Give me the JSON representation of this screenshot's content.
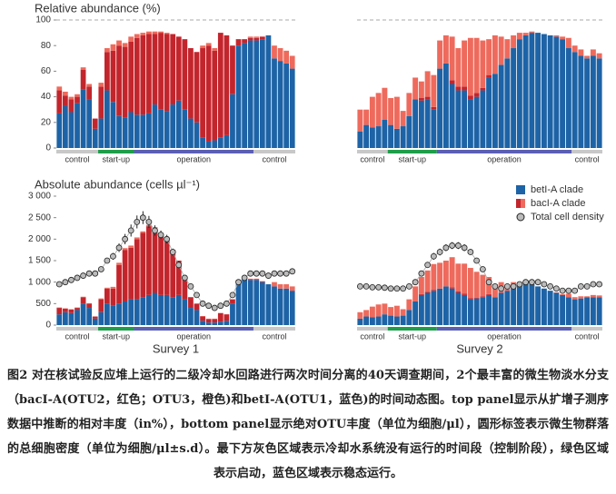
{
  "chart_data": [
    {
      "type": "bar",
      "title": "Relative abundance (%)",
      "ylim": [
        0,
        100
      ],
      "yticks": [
        0,
        20,
        40,
        60,
        80,
        100
      ],
      "reference_line": 100,
      "phases": [
        {
          "label": "control",
          "span": 7,
          "color": "#c8c8c8"
        },
        {
          "label": "start-up",
          "span": 6,
          "color": "#1f9e4a"
        },
        {
          "label": "operation",
          "span": 20,
          "color": "#5b5fb4"
        },
        {
          "label": "control",
          "span": 7,
          "color": "#c8c8c8"
        }
      ],
      "series": [
        {
          "name": "betI-A clade",
          "color": "#1d63a6",
          "values": [
            27,
            33,
            28,
            35,
            46,
            38,
            15,
            23,
            45,
            36,
            25,
            24,
            28,
            26,
            26,
            27,
            34,
            30,
            29,
            34,
            37,
            30,
            23,
            20,
            8,
            5,
            6,
            8,
            10,
            42,
            80,
            82,
            84,
            84,
            85,
            88,
            70,
            68,
            66,
            62
          ]
        },
        {
          "name": "bacI-A clade",
          "color": "#c3252c",
          "values": [
            18,
            8,
            10,
            5,
            15,
            10,
            8,
            25,
            30,
            40,
            55,
            55,
            55,
            60,
            62,
            62,
            55,
            60,
            60,
            55,
            50,
            55,
            55,
            55,
            70,
            75,
            70,
            82,
            78,
            38,
            5,
            3,
            2,
            2,
            2,
            0,
            0,
            0,
            0,
            0
          ]
        },
        {
          "color": "#ee6a5c",
          "values": [
            3,
            3,
            2,
            2,
            2,
            2,
            0,
            3,
            3,
            5,
            4,
            3,
            4,
            3,
            2,
            2,
            2,
            1,
            1,
            0,
            0,
            0,
            0,
            0,
            2,
            2,
            2,
            0,
            0,
            0,
            0,
            0,
            1,
            1,
            0,
            0,
            10,
            10,
            10,
            10
          ]
        }
      ]
    },
    {
      "type": "bar",
      "ylim": [
        0,
        100
      ],
      "reference_line": 100,
      "phases": [
        {
          "label": "control",
          "span": 5,
          "color": "#c8c8c8"
        },
        {
          "label": "start-up",
          "span": 8,
          "color": "#1f9e4a"
        },
        {
          "label": "operation",
          "span": 22,
          "color": "#5b5fb4"
        },
        {
          "label": "control",
          "span": 5,
          "color": "#c8c8c8"
        }
      ],
      "series": [
        {
          "name": "betI-A clade",
          "color": "#1d63a6",
          "values": [
            13,
            18,
            16,
            17,
            22,
            18,
            15,
            17,
            25,
            38,
            37,
            38,
            30,
            62,
            66,
            50,
            45,
            45,
            38,
            40,
            45,
            55,
            58,
            65,
            70,
            78,
            85,
            88,
            90,
            90,
            89,
            88,
            87,
            85,
            78,
            75,
            72,
            70,
            72,
            70
          ]
        },
        {
          "name": "bacI-A clade",
          "color": "#c3252c",
          "values": [
            0,
            0,
            0,
            0,
            0,
            0,
            0,
            0,
            0,
            0,
            2,
            2,
            2,
            0,
            0,
            3,
            3,
            3,
            3,
            3,
            2,
            2,
            0,
            0,
            0,
            0,
            0,
            0,
            0,
            0,
            0,
            0,
            0,
            0,
            0,
            0,
            0,
            0,
            0,
            0
          ]
        },
        {
          "color": "#ee6a5c",
          "values": [
            17,
            12,
            24,
            26,
            25,
            21,
            25,
            12,
            18,
            17,
            13,
            20,
            25,
            22,
            22,
            34,
            30,
            36,
            45,
            43,
            37,
            28,
            30,
            22,
            15,
            10,
            5,
            2,
            1,
            0,
            0,
            0,
            1,
            2,
            8,
            5,
            5,
            2,
            5,
            4
          ]
        }
      ]
    },
    {
      "type": "bar",
      "title": "Absolute abundance (cells µl⁻¹)",
      "xlabel": "Survey 1",
      "ylim": [
        0,
        3000
      ],
      "yticks": [
        0,
        500,
        {
          "value": 1000,
          "label": "1 000"
        },
        {
          "value": 1500,
          "label": "1 500"
        },
        {
          "value": 2000,
          "label": "2 000"
        },
        {
          "value": 2500,
          "label": "2 500"
        },
        {
          "value": 3000,
          "label": "3 000"
        }
      ],
      "phases": [
        {
          "label": "control",
          "span": 7,
          "color": "#c8c8c8"
        },
        {
          "label": "start-up",
          "span": 6,
          "color": "#1f9e4a"
        },
        {
          "label": "operation",
          "span": 20,
          "color": "#5b5fb4"
        },
        {
          "label": "control",
          "span": 7,
          "color": "#c8c8c8"
        }
      ],
      "series": [
        {
          "name": "betI-A clade",
          "color": "#1d63a6",
          "values": [
            250,
            300,
            280,
            350,
            500,
            400,
            150,
            300,
            500,
            450,
            500,
            550,
            600,
            600,
            650,
            700,
            750,
            700,
            700,
            650,
            700,
            600,
            400,
            350,
            100,
            60,
            60,
            80,
            100,
            500,
            1000,
            1100,
            1050,
            1050,
            1000,
            950,
            900,
            850,
            850,
            800
          ]
        },
        {
          "name": "bacI-A clade",
          "color": "#c3252c",
          "values": [
            150,
            80,
            80,
            50,
            150,
            100,
            50,
            300,
            350,
            400,
            900,
            1200,
            1200,
            1400,
            1500,
            1600,
            1500,
            1400,
            1300,
            1100,
            800,
            500,
            250,
            150,
            100,
            80,
            80,
            200,
            150,
            100,
            50,
            30,
            20,
            20,
            20,
            0,
            0,
            0,
            0,
            0
          ]
        },
        {
          "color": "#ee6a5c",
          "values": [
            10,
            10,
            10,
            10,
            10,
            10,
            0,
            20,
            20,
            40,
            50,
            40,
            50,
            40,
            30,
            30,
            30,
            20,
            20,
            0,
            0,
            0,
            0,
            0,
            10,
            10,
            10,
            0,
            0,
            0,
            0,
            0,
            10,
            10,
            0,
            0,
            100,
            100,
            100,
            100
          ]
        }
      ],
      "density": {
        "name": "Total cell density",
        "values": [
          950,
          1000,
          1050,
          1100,
          1150,
          1200,
          1200,
          1300,
          1500,
          1600,
          1800,
          2000,
          2200,
          2400,
          2500,
          2400,
          2200,
          2100,
          2000,
          1700,
          1400,
          1100,
          900,
          700,
          500,
          450,
          400,
          450,
          500,
          700,
          1000,
          1100,
          1200,
          1200,
          1200,
          1150,
          1200,
          1200,
          1200,
          1250
        ],
        "errors": [
          40,
          40,
          40,
          40,
          40,
          40,
          40,
          50,
          60,
          80,
          100,
          120,
          140,
          150,
          150,
          140,
          120,
          100,
          100,
          80,
          80,
          60,
          50,
          50,
          40,
          40,
          40,
          40,
          40,
          50,
          60,
          60,
          60,
          60,
          50,
          50,
          50,
          50,
          50,
          50
        ]
      }
    },
    {
      "type": "bar",
      "xlabel": "Survey 2",
      "ylim": [
        0,
        3000
      ],
      "phases": [
        {
          "label": "control",
          "span": 5,
          "color": "#c8c8c8"
        },
        {
          "label": "start-up",
          "span": 8,
          "color": "#1f9e4a"
        },
        {
          "label": "operation",
          "span": 22,
          "color": "#5b5fb4"
        },
        {
          "label": "control",
          "span": 5,
          "color": "#c8c8c8"
        }
      ],
      "series": [
        {
          "name": "betI-A clade",
          "color": "#1d63a6",
          "values": [
            150,
            200,
            180,
            200,
            250,
            220,
            200,
            220,
            350,
            550,
            700,
            750,
            800,
            850,
            900,
            850,
            750,
            700,
            600,
            620,
            650,
            700,
            650,
            750,
            800,
            900,
            950,
            1000,
            950,
            900,
            850,
            800,
            750,
            700,
            650,
            600,
            620,
            650,
            650,
            650
          ]
        },
        {
          "name": "bacI-A clade",
          "color": "#c3252c",
          "values": [
            0,
            0,
            0,
            0,
            0,
            0,
            0,
            0,
            0,
            0,
            20,
            20,
            20,
            0,
            0,
            30,
            30,
            30,
            30,
            20,
            20,
            20,
            0,
            0,
            0,
            0,
            0,
            0,
            0,
            0,
            0,
            0,
            0,
            0,
            0,
            0,
            0,
            0,
            0,
            0
          ]
        },
        {
          "color": "#ee6a5c",
          "values": [
            150,
            150,
            250,
            280,
            250,
            200,
            250,
            150,
            250,
            350,
            400,
            500,
            600,
            600,
            600,
            700,
            650,
            700,
            700,
            600,
            500,
            400,
            300,
            250,
            150,
            100,
            50,
            20,
            10,
            0,
            0,
            0,
            10,
            20,
            80,
            50,
            50,
            20,
            50,
            40
          ]
        }
      ],
      "density": {
        "name": "Total cell density",
        "values": [
          900,
          900,
          880,
          880,
          870,
          850,
          850,
          850,
          900,
          1000,
          1200,
          1400,
          1600,
          1700,
          1800,
          1850,
          1850,
          1800,
          1700,
          1500,
          1300,
          1000,
          900,
          850,
          900,
          900,
          950,
          1000,
          1000,
          1000,
          950,
          900,
          850,
          800,
          800,
          800,
          900,
          900,
          950,
          950
        ],
        "errors": [
          40,
          40,
          40,
          40,
          40,
          40,
          40,
          40,
          40,
          50,
          60,
          70,
          80,
          80,
          80,
          80,
          80,
          80,
          70,
          60,
          60,
          50,
          40,
          40,
          40,
          40,
          40,
          50,
          50,
          50,
          40,
          40,
          40,
          40,
          40,
          40,
          40,
          40,
          40,
          40
        ]
      }
    }
  ],
  "caption": "图2 对在核试验反应堆上运行的二级冷却水回路进行两次时间分离的40天调查期间，2个最丰富的微生物淡水分支（bacI-A(OTU2，红色；OTU3，橙色)和betI-A(OTU1，蓝色)的时间动态图。top panel显示从扩增子测序数据中推断的相对丰度（in%），bottom panel显示绝对OTU丰度（单位为细胞/μl），圆形标签表示微生物群落的总细胞密度（单位为细胞/μl±s.d）。最下方灰色区域表示冷却水系统没有运行的时间段（控制阶段），绿色区域表示启动，蓝色区域表示稳态运行。"
}
